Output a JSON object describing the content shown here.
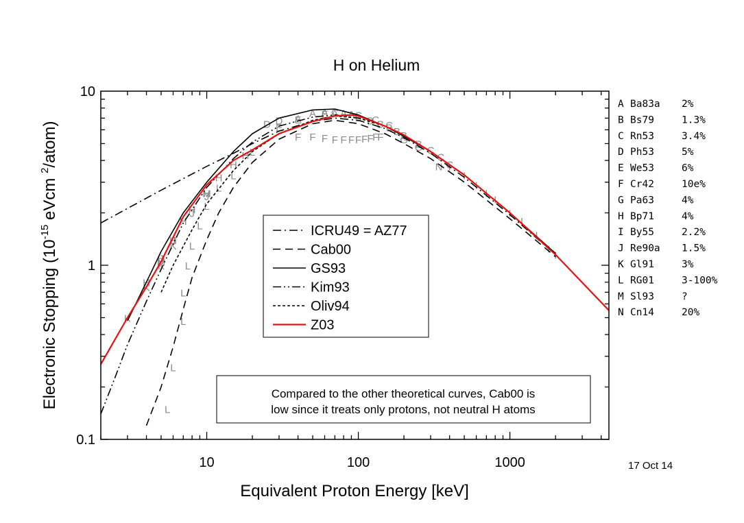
{
  "chart_data": {
    "type": "line",
    "title": "H on Helium",
    "xlabel": "Equivalent Proton Energy [keV]",
    "ylabel": {
      "prefix": "Electronic Stopping (10",
      "exp1": "-15",
      "mid": " eVcm ",
      "exp2": "2",
      "suffix": "/atom)"
    },
    "xscale": "log",
    "yscale": "log",
    "xlim": [
      2,
      4500
    ],
    "ylim": [
      0.1,
      10
    ],
    "x_ticks": [
      {
        "value": 10,
        "label": "10"
      },
      {
        "value": 100,
        "label": "100"
      },
      {
        "value": 1000,
        "label": "1000"
      }
    ],
    "y_ticks": [
      {
        "value": 0.1,
        "label": "0.1"
      },
      {
        "value": 1,
        "label": "1"
      },
      {
        "value": 10,
        "label": "10"
      }
    ],
    "date_note": "17 Oct 14",
    "annotation": [
      "Compared to the other theoretical curves, Cab00 is",
      "low since it treats only protons, not neutral H atoms"
    ],
    "legend": {
      "placement": "center",
      "entries": [
        {
          "name": "ICRU49 = AZ77",
          "dash": "dashdot",
          "color": "#000000"
        },
        {
          "name": "Cab00",
          "dash": "dashed",
          "color": "#000000"
        },
        {
          "name": "GS93",
          "dash": "solid",
          "color": "#000000"
        },
        {
          "name": "Kim93",
          "dash": "dashdotdot",
          "color": "#000000"
        },
        {
          "name": "Oliv94",
          "dash": "shortdash",
          "color": "#000000"
        },
        {
          "name": "Z03",
          "dash": "solid",
          "color": "#e8100c"
        }
      ]
    },
    "series": [
      {
        "key": "ICRU49",
        "dash": "dashdot",
        "color": "#000000",
        "points": [
          [
            2,
            1.75
          ],
          [
            5,
            2.7
          ],
          [
            10,
            3.7
          ],
          [
            15,
            4.4
          ],
          [
            20,
            5.0
          ],
          [
            30,
            5.9
          ],
          [
            50,
            6.7
          ],
          [
            70,
            7.0
          ],
          [
            100,
            6.8
          ],
          [
            150,
            6.1
          ],
          [
            200,
            5.4
          ],
          [
            300,
            4.4
          ],
          [
            500,
            3.2
          ],
          [
            1000,
            1.95
          ],
          [
            2000,
            1.15
          ]
        ]
      },
      {
        "key": "Cab00",
        "dash": "dashed",
        "color": "#000000",
        "points": [
          [
            4,
            0.12
          ],
          [
            5,
            0.2
          ],
          [
            6,
            0.34
          ],
          [
            7,
            0.56
          ],
          [
            8,
            0.85
          ],
          [
            10,
            1.4
          ],
          [
            12,
            2.0
          ],
          [
            15,
            2.8
          ],
          [
            20,
            3.9
          ],
          [
            30,
            5.3
          ],
          [
            50,
            6.5
          ],
          [
            70,
            6.8
          ],
          [
            100,
            6.5
          ],
          [
            150,
            5.7
          ],
          [
            200,
            5.0
          ],
          [
            300,
            4.1
          ],
          [
            500,
            3.0
          ],
          [
            1000,
            1.85
          ],
          [
            2000,
            1.12
          ]
        ]
      },
      {
        "key": "GS93",
        "dash": "solid",
        "color": "#000000",
        "points": [
          [
            3,
            0.48
          ],
          [
            4,
            0.8
          ],
          [
            5,
            1.2
          ],
          [
            7,
            2.0
          ],
          [
            10,
            3.0
          ],
          [
            15,
            4.5
          ],
          [
            20,
            5.7
          ],
          [
            30,
            7.0
          ],
          [
            50,
            7.8
          ],
          [
            70,
            7.9
          ],
          [
            100,
            7.3
          ],
          [
            150,
            6.3
          ],
          [
            200,
            5.5
          ],
          [
            300,
            4.5
          ],
          [
            500,
            3.3
          ],
          [
            1000,
            2.0
          ],
          [
            2000,
            1.17
          ]
        ]
      },
      {
        "key": "Kim93",
        "dash": "dashdotdot",
        "color": "#000000",
        "points": [
          [
            2,
            0.14
          ],
          [
            2.5,
            0.23
          ],
          [
            3,
            0.35
          ],
          [
            4,
            0.62
          ],
          [
            5,
            0.95
          ],
          [
            7,
            1.75
          ],
          [
            10,
            2.8
          ],
          [
            15,
            4.1
          ],
          [
            20,
            5.1
          ],
          [
            30,
            6.3
          ],
          [
            50,
            7.1
          ],
          [
            70,
            7.3
          ],
          [
            100,
            7.0
          ]
        ]
      },
      {
        "key": "Oliv94",
        "dash": "shortdash",
        "color": "#000000",
        "points": [
          [
            5,
            0.7
          ],
          [
            6,
            1.0
          ],
          [
            8,
            1.6
          ],
          [
            10,
            2.25
          ],
          [
            15,
            3.5
          ],
          [
            20,
            4.5
          ],
          [
            30,
            5.7
          ],
          [
            50,
            6.8
          ],
          [
            70,
            7.2
          ],
          [
            100,
            7.0
          ],
          [
            150,
            6.3
          ],
          [
            200,
            5.6
          ]
        ]
      },
      {
        "key": "Z03",
        "dash": "solid",
        "color": "#e8100c",
        "points": [
          [
            2,
            0.27
          ],
          [
            3,
            0.5
          ],
          [
            4,
            0.75
          ],
          [
            5,
            1.05
          ],
          [
            7,
            1.9
          ],
          [
            10,
            2.9
          ],
          [
            15,
            4.0
          ],
          [
            20,
            4.6
          ],
          [
            30,
            5.7
          ],
          [
            50,
            6.7
          ],
          [
            70,
            7.2
          ],
          [
            90,
            7.3
          ],
          [
            100,
            7.2
          ],
          [
            150,
            6.3
          ],
          [
            200,
            5.6
          ],
          [
            300,
            4.5
          ],
          [
            500,
            3.3
          ],
          [
            1000,
            2.0
          ],
          [
            2000,
            1.15
          ],
          [
            4500,
            0.55
          ]
        ]
      }
    ],
    "experimental_data": [
      {
        "code": "A",
        "ref": "Ba83a",
        "error": "2%",
        "points": [
          [
            40,
            7.0
          ],
          [
            50,
            7.5
          ],
          [
            60,
            7.6
          ],
          [
            70,
            7.5
          ],
          [
            80,
            7.5
          ],
          [
            90,
            7.4
          ]
        ]
      },
      {
        "code": "B",
        "ref": "Bs79",
        "error": "1.3%",
        "points": [
          [
            100,
            7.1
          ],
          [
            120,
            6.8
          ],
          [
            140,
            6.5
          ],
          [
            160,
            6.2
          ],
          [
            180,
            5.9
          ],
          [
            200,
            5.6
          ],
          [
            250,
            5.0
          ]
        ]
      },
      {
        "code": "C",
        "ref": "Rn53",
        "error": "3.4%",
        "points": [
          [
            70,
            7.6
          ],
          [
            100,
            7.3
          ],
          [
            130,
            6.9
          ],
          [
            160,
            6.4
          ],
          [
            300,
            4.6
          ],
          [
            350,
            4.2
          ],
          [
            400,
            3.8
          ]
        ]
      },
      {
        "code": "D",
        "ref": "Ph53",
        "error": "5%",
        "points": [
          [
            25,
            6.5
          ],
          [
            30,
            6.8
          ]
        ]
      },
      {
        "code": "E",
        "ref": "We53",
        "error": "6%",
        "points": [
          [
            30,
            6.2
          ],
          [
            40,
            6.9
          ],
          [
            60,
            7.4
          ]
        ]
      },
      {
        "code": "F",
        "ref": "Cr42",
        "error": "10e%",
        "points": [
          [
            40,
            5.5
          ],
          [
            50,
            5.5
          ],
          [
            60,
            5.4
          ],
          [
            70,
            5.3
          ],
          [
            80,
            5.3
          ],
          [
            90,
            5.3
          ],
          [
            100,
            5.3
          ],
          [
            110,
            5.35
          ],
          [
            120,
            5.4
          ],
          [
            130,
            5.5
          ],
          [
            140,
            5.5
          ]
        ]
      },
      {
        "code": "G",
        "ref": "Pa63",
        "error": "4%",
        "points": [
          [
            200,
            5.3
          ],
          [
            250,
            4.8
          ]
        ]
      },
      {
        "code": "H",
        "ref": "Bp71",
        "error": "4%",
        "points": [
          [
            4,
            0.8
          ],
          [
            5,
            1.1
          ],
          [
            6,
            1.4
          ],
          [
            7,
            1.8
          ],
          [
            8,
            2.1
          ],
          [
            10,
            2.6
          ],
          [
            12,
            3.2
          ],
          [
            15,
            3.8
          ],
          [
            18,
            4.3
          ]
        ]
      },
      {
        "code": "I",
        "ref": "By55",
        "error": "2.2%",
        "points": [
          [
            400,
            3.7
          ],
          [
            500,
            3.3
          ],
          [
            600,
            2.9
          ],
          [
            700,
            2.6
          ],
          [
            800,
            2.4
          ],
          [
            1000,
            2.0
          ],
          [
            1200,
            1.8
          ],
          [
            1500,
            1.5
          ],
          [
            1800,
            1.25
          ],
          [
            2000,
            1.15
          ]
        ]
      },
      {
        "code": "J",
        "ref": "Re90a",
        "error": "1.5%",
        "points": [
          [
            5,
            1.1
          ],
          [
            6,
            1.4
          ],
          [
            8,
            2.0
          ],
          [
            10,
            2.5
          ]
        ]
      },
      {
        "code": "K",
        "ref": "Gl91",
        "error": "3%",
        "points": [
          [
            3,
            0.5
          ],
          [
            4,
            0.75
          ],
          [
            5,
            1.0
          ],
          [
            6,
            1.3
          ]
        ]
      },
      {
        "code": "L",
        "ref": "RG01",
        "error": "3-100%",
        "points": [
          [
            5.5,
            0.15
          ],
          [
            6,
            0.26
          ],
          [
            7,
            0.48
          ],
          [
            7,
            0.7
          ],
          [
            7.5,
            1.0
          ],
          [
            8,
            1.3
          ],
          [
            9,
            1.7
          ],
          [
            10,
            2.2
          ],
          [
            12,
            2.8
          ],
          [
            15,
            3.3
          ],
          [
            20,
            4.5
          ]
        ]
      },
      {
        "code": "M",
        "ref": "Sl93",
        "error": "?",
        "points": [
          [
            5,
            1.05
          ],
          [
            10,
            2.6
          ]
        ]
      },
      {
        "code": "N",
        "ref": "Cn14",
        "error": "20%",
        "points": [
          [
            340,
            3.7
          ]
        ]
      }
    ],
    "grid": false
  }
}
